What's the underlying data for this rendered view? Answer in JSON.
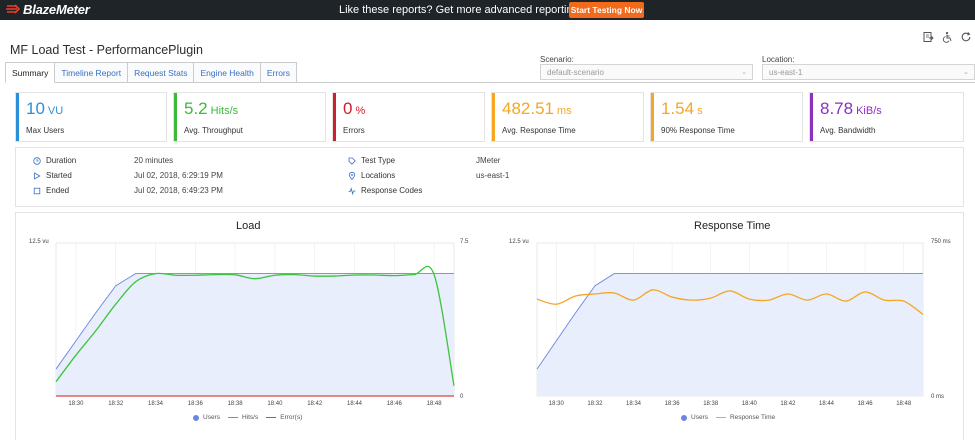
{
  "topbar": {
    "brand": "BlazeMeter",
    "promo_text": "Like these reports? Get more advanced reporting features",
    "cta_label": "Start Testing Now",
    "colors": {
      "background": "#1f2429",
      "cta": "#f26a1b",
      "logo_mark": "#e8402a"
    }
  },
  "header": {
    "title": "MF Load Test - PerformancePlugin",
    "icons": [
      "report-icon",
      "accessibility-icon",
      "refresh-icon"
    ]
  },
  "filters": {
    "scenario": {
      "label": "Scenario:",
      "value": "default-scenario"
    },
    "location": {
      "label": "Location:",
      "value": "us-east-1"
    }
  },
  "tabs": [
    {
      "label": "Summary",
      "active": true
    },
    {
      "label": "Timeline Report",
      "active": false
    },
    {
      "label": "Request Stats",
      "active": false
    },
    {
      "label": "Engine Health",
      "active": false
    },
    {
      "label": "Errors",
      "active": false
    }
  ],
  "kpis": [
    {
      "value": "10",
      "unit": "VU",
      "label": "Max Users",
      "color": "#2a8fd8"
    },
    {
      "value": "5.2",
      "unit": "Hits/s",
      "label": "Avg. Throughput",
      "color": "#3cba3c"
    },
    {
      "value": "0",
      "unit": "%",
      "label": "Errors",
      "color": "#d0202e"
    },
    {
      "value": "482.51",
      "unit": "ms",
      "label": "Avg. Response Time",
      "color": "#f5a623"
    },
    {
      "value": "1.54",
      "unit": "s",
      "label": "90% Response Time",
      "color": "#f5a623"
    },
    {
      "value": "8.78",
      "unit": "KiB/s",
      "label": "Avg. Bandwidth",
      "color": "#8e2fc2"
    }
  ],
  "summary": {
    "duration": {
      "label": "Duration",
      "value": "20 minutes"
    },
    "started": {
      "label": "Started",
      "value": "Jul 02, 2018, 6:29:19 PM"
    },
    "ended": {
      "label": "Ended",
      "value": "Jul 02, 2018, 6:49:23 PM"
    },
    "test_type": {
      "label": "Test Type",
      "value": "JMeter"
    },
    "locations": {
      "label": "Locations",
      "value": "us-east-1"
    },
    "response_codes": {
      "label": "Response Codes",
      "value": ""
    }
  },
  "chart_data": [
    {
      "type": "line",
      "title": "Load",
      "x": [
        "18:29",
        "18:30",
        "18:31",
        "18:32",
        "18:33",
        "18:34",
        "18:35",
        "18:36",
        "18:37",
        "18:38",
        "18:39",
        "18:40",
        "18:41",
        "18:42",
        "18:43",
        "18:44",
        "18:45",
        "18:46",
        "18:47",
        "18:48",
        "18:49"
      ],
      "xticks": [
        "18:30",
        "18:32",
        "18:34",
        "18:36",
        "18:38",
        "18:40",
        "18:42",
        "18:44",
        "18:46",
        "18:48"
      ],
      "y_left_label": "12.5 vu",
      "y_left_range": [
        0,
        12.5
      ],
      "y_right_label": "7.5",
      "y_right_zero": "0",
      "y_right_range": [
        0,
        7.5
      ],
      "series": [
        {
          "name": "Users",
          "axis": "left",
          "color": "#6b86e0",
          "fill": "#e8eefb",
          "values": [
            2.2,
            4.5,
            6.8,
            9.0,
            10,
            10,
            10,
            10,
            10,
            10,
            10,
            10,
            10,
            10,
            10,
            10,
            10,
            10,
            10,
            10,
            10
          ]
        },
        {
          "name": "Hits/s",
          "axis": "right",
          "color": "#3cc43c",
          "values": [
            0.7,
            2.0,
            3.2,
            4.5,
            5.6,
            6.0,
            5.92,
            5.92,
            5.95,
            5.94,
            5.75,
            5.92,
            5.95,
            5.88,
            5.88,
            5.93,
            5.93,
            5.9,
            5.95,
            5.95,
            0.5
          ]
        },
        {
          "name": "Error(s)",
          "axis": "right",
          "color": "#e04040",
          "values": [
            0,
            0,
            0,
            0,
            0,
            0,
            0,
            0,
            0,
            0,
            0,
            0,
            0,
            0,
            0,
            0,
            0,
            0,
            0,
            0,
            0
          ]
        }
      ]
    },
    {
      "type": "line",
      "title": "Response Time",
      "x": [
        "18:29",
        "18:30",
        "18:31",
        "18:32",
        "18:33",
        "18:34",
        "18:35",
        "18:36",
        "18:37",
        "18:38",
        "18:39",
        "18:40",
        "18:41",
        "18:42",
        "18:43",
        "18:44",
        "18:45",
        "18:46",
        "18:47",
        "18:48",
        "18:49"
      ],
      "xticks": [
        "18:30",
        "18:32",
        "18:34",
        "18:36",
        "18:38",
        "18:40",
        "18:42",
        "18:44",
        "18:46",
        "18:48"
      ],
      "y_left_label": "12.5 vu",
      "y_left_range": [
        0,
        12.5
      ],
      "y_right_label": "750 ms",
      "y_right_zero": "0 ms",
      "y_right_range": [
        0,
        750
      ],
      "series": [
        {
          "name": "Users",
          "axis": "left",
          "color": "#6b86e0",
          "fill": "#e8eefb",
          "values": [
            2.2,
            4.5,
            6.8,
            9.0,
            10,
            10,
            10,
            10,
            10,
            10,
            10,
            10,
            10,
            10,
            10,
            10,
            10,
            10,
            10,
            10,
            10
          ]
        },
        {
          "name": "Response Time",
          "axis": "right",
          "color": "#f5a623",
          "values": [
            475,
            450,
            490,
            500,
            505,
            470,
            520,
            485,
            470,
            480,
            515,
            475,
            470,
            500,
            470,
            500,
            465,
            510,
            470,
            465,
            400
          ]
        }
      ]
    }
  ]
}
